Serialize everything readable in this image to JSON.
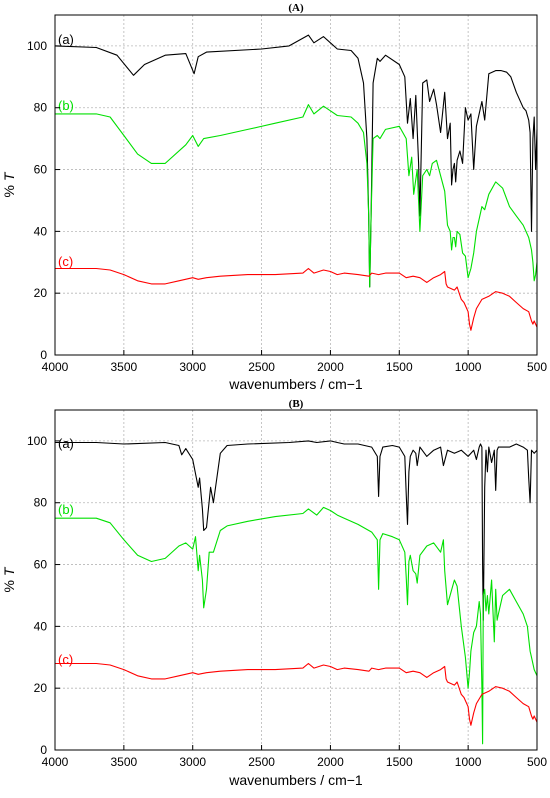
{
  "chart_data": [
    {
      "panel": "(A)",
      "type": "line",
      "title": "(A)",
      "xlabel": "wavenumbers / cm−1",
      "ylabel": "% T",
      "xlim": [
        4000,
        500
      ],
      "ylim": [
        0,
        110
      ],
      "xticks": [
        4000,
        3500,
        3000,
        2500,
        2000,
        1500,
        1000,
        500
      ],
      "yticks": [
        0,
        20,
        40,
        60,
        80,
        100
      ],
      "grid": true,
      "series": [
        {
          "name": "(a)",
          "color": "#000000",
          "x": [
            4000,
            3700,
            3550,
            3430,
            3350,
            3200,
            3050,
            2990,
            2960,
            2900,
            2500,
            2300,
            2160,
            2120,
            2050,
            2000,
            1950,
            1850,
            1800,
            1760,
            1735,
            1722,
            1715,
            1705,
            1690,
            1660,
            1640,
            1600,
            1500,
            1460,
            1440,
            1420,
            1400,
            1380,
            1360,
            1350,
            1330,
            1300,
            1280,
            1250,
            1230,
            1200,
            1170,
            1150,
            1130,
            1120,
            1110,
            1100,
            1090,
            1080,
            1060,
            1040,
            1020,
            1000,
            980,
            960,
            940,
            900,
            880,
            850,
            800,
            760,
            720,
            690,
            650,
            600,
            580,
            560,
            550,
            540,
            530,
            520,
            510,
            500
          ],
          "y": [
            100,
            99.5,
            97,
            90.5,
            94,
            97,
            97.5,
            91,
            96.5,
            98,
            99,
            100,
            103.5,
            101,
            103,
            101,
            99,
            98.5,
            96,
            88,
            70,
            45,
            22,
            45,
            88,
            96,
            95,
            97,
            94,
            90,
            75,
            83,
            70,
            84,
            62,
            45,
            88,
            89,
            82,
            86,
            81,
            72,
            85,
            70,
            75,
            55,
            60,
            62,
            56,
            63,
            66,
            62,
            80,
            76,
            78,
            60,
            74,
            82,
            76,
            91,
            92,
            92,
            91.5,
            90,
            85,
            80,
            79,
            76,
            72,
            40,
            70,
            77,
            60,
            73
          ]
        },
        {
          "name": "(b)",
          "color": "#00e000",
          "x": [
            4000,
            3800,
            3700,
            3600,
            3500,
            3400,
            3300,
            3200,
            3050,
            3000,
            2960,
            2920,
            2800,
            2600,
            2400,
            2200,
            2160,
            2120,
            2050,
            2000,
            1950,
            1850,
            1800,
            1760,
            1735,
            1722,
            1715,
            1705,
            1690,
            1660,
            1640,
            1600,
            1500,
            1450,
            1430,
            1410,
            1395,
            1370,
            1350,
            1330,
            1300,
            1280,
            1260,
            1230,
            1200,
            1170,
            1150,
            1130,
            1120,
            1110,
            1100,
            1090,
            1080,
            1060,
            1040,
            1020,
            1000,
            980,
            960,
            940,
            900,
            880,
            850,
            800,
            750,
            700,
            650,
            600,
            560,
            540,
            530,
            520,
            510,
            500
          ],
          "y": [
            78,
            78,
            78,
            77,
            71,
            65,
            62,
            62,
            68,
            71,
            67.5,
            70,
            71,
            73,
            75,
            77,
            81,
            78,
            80.5,
            79,
            77.5,
            77,
            75,
            72,
            62,
            45,
            22,
            45,
            70,
            71,
            70,
            73,
            74,
            70,
            58,
            64,
            52,
            60,
            40,
            58,
            60,
            58,
            62,
            63,
            58,
            53,
            42,
            40,
            34,
            38,
            38,
            35,
            40,
            39,
            33,
            32,
            25,
            28,
            33,
            40,
            48,
            47,
            52,
            56,
            54,
            48,
            45,
            42,
            38,
            34,
            30,
            24,
            26,
            30
          ]
        },
        {
          "name": "(c)",
          "color": "#ff0000",
          "x": [
            4000,
            3800,
            3700,
            3600,
            3500,
            3400,
            3300,
            3200,
            3100,
            3000,
            2960,
            2900,
            2800,
            2600,
            2400,
            2200,
            2160,
            2120,
            2050,
            2000,
            1950,
            1900,
            1800,
            1720,
            1700,
            1650,
            1600,
            1500,
            1450,
            1400,
            1350,
            1300,
            1250,
            1200,
            1170,
            1160,
            1150,
            1100,
            1080,
            1050,
            1030,
            1000,
            990,
            980,
            960,
            940,
            900,
            850,
            800,
            750,
            700,
            650,
            600,
            560,
            540,
            530,
            520,
            500
          ],
          "y": [
            28,
            28,
            28,
            27.5,
            26,
            24,
            23,
            23,
            24,
            25,
            24.5,
            25,
            25.5,
            26,
            26,
            26.5,
            28,
            26.5,
            27.5,
            27,
            26,
            26.5,
            26,
            25.5,
            26.5,
            26,
            26.5,
            26.5,
            25,
            25.5,
            25,
            23.5,
            25,
            26,
            27,
            23,
            22,
            21,
            22,
            18,
            17,
            14,
            10,
            8,
            12,
            15,
            18,
            19,
            20.5,
            20,
            19,
            17,
            15,
            14,
            11,
            10,
            11,
            9
          ]
        }
      ]
    },
    {
      "panel": "(B)",
      "type": "line",
      "title": "(B)",
      "xlabel": "wavenumbers / cm−1",
      "ylabel": "% T",
      "xlim": [
        4000,
        500
      ],
      "ylim": [
        0,
        110
      ],
      "xticks": [
        4000,
        3500,
        3000,
        2500,
        2000,
        1500,
        1000,
        500
      ],
      "yticks": [
        0,
        20,
        40,
        60,
        80,
        100
      ],
      "grid": true,
      "series": [
        {
          "name": "(a)",
          "color": "#000000",
          "x": [
            4000,
            3700,
            3500,
            3200,
            3100,
            3080,
            3050,
            3000,
            2960,
            2950,
            2930,
            2920,
            2900,
            2870,
            2850,
            2800,
            2750,
            2600,
            2300,
            2160,
            2100,
            2000,
            1950,
            1900,
            1800,
            1700,
            1660,
            1650,
            1640,
            1620,
            1550,
            1500,
            1460,
            1450,
            1440,
            1430,
            1420,
            1400,
            1380,
            1370,
            1350,
            1300,
            1250,
            1200,
            1180,
            1150,
            1100,
            1050,
            1000,
            960,
            940,
            920,
            910,
            900,
            895,
            890,
            880,
            870,
            860,
            850,
            830,
            810,
            800,
            790,
            780,
            750,
            700,
            650,
            600,
            570,
            560,
            550,
            540,
            520,
            500
          ],
          "y": [
            99.5,
            99.5,
            99,
            99.5,
            98.5,
            95.5,
            97.5,
            94,
            85,
            88,
            78,
            71,
            72,
            85,
            80,
            96,
            98.5,
            99,
            99.5,
            100,
            99.5,
            100,
            99.5,
            99,
            99,
            98,
            95,
            82,
            95,
            98,
            98.5,
            98,
            95,
            83,
            73,
            90,
            95,
            97,
            96,
            92,
            98,
            95,
            97,
            98,
            92,
            97,
            96,
            97,
            95,
            97,
            94,
            98,
            99,
            98,
            60,
            42,
            85,
            97,
            90,
            98,
            93,
            97,
            84,
            97,
            98,
            98,
            98,
            99,
            98,
            97,
            88,
            80,
            97,
            96,
            97
          ]
        },
        {
          "name": "(b)",
          "color": "#00e000",
          "x": [
            4000,
            3800,
            3700,
            3600,
            3500,
            3400,
            3300,
            3200,
            3100,
            3050,
            3000,
            2980,
            2960,
            2950,
            2930,
            2920,
            2900,
            2880,
            2850,
            2800,
            2750,
            2600,
            2400,
            2200,
            2160,
            2100,
            2050,
            2000,
            1950,
            1900,
            1800,
            1700,
            1660,
            1650,
            1640,
            1620,
            1550,
            1500,
            1460,
            1450,
            1440,
            1430,
            1420,
            1400,
            1380,
            1370,
            1350,
            1300,
            1250,
            1200,
            1180,
            1170,
            1150,
            1100,
            1080,
            1050,
            1020,
            1000,
            990,
            980,
            960,
            940,
            920,
            910,
            900,
            895,
            890,
            880,
            870,
            860,
            850,
            830,
            810,
            800,
            790,
            780,
            750,
            700,
            650,
            600,
            570,
            560,
            550,
            540,
            520,
            500
          ],
          "y": [
            75,
            75,
            75,
            73.5,
            68,
            63,
            61,
            62,
            66,
            67,
            65,
            69,
            58,
            63,
            55,
            46,
            52,
            64,
            64,
            71,
            72.5,
            74,
            75.5,
            76.5,
            78,
            76,
            78.5,
            77.5,
            76,
            75,
            73,
            70.5,
            68,
            52,
            68,
            70,
            69,
            68,
            64,
            56,
            47,
            61,
            63,
            58,
            57,
            54,
            63,
            66,
            67,
            64,
            68,
            58,
            47,
            55,
            53,
            40,
            30,
            20,
            25,
            32,
            38,
            40,
            48,
            44,
            20,
            2,
            50,
            52,
            45,
            50,
            44,
            55,
            35,
            52,
            42,
            44,
            50,
            52,
            48,
            44,
            40,
            36,
            32,
            30,
            26,
            24
          ]
        },
        {
          "name": "(c)",
          "color": "#ff0000",
          "x": [
            4000,
            3800,
            3700,
            3600,
            3500,
            3400,
            3300,
            3200,
            3100,
            3000,
            2960,
            2900,
            2800,
            2600,
            2400,
            2200,
            2160,
            2120,
            2050,
            2000,
            1950,
            1900,
            1800,
            1720,
            1700,
            1650,
            1600,
            1500,
            1450,
            1400,
            1350,
            1300,
            1250,
            1200,
            1170,
            1160,
            1150,
            1100,
            1080,
            1050,
            1030,
            1000,
            990,
            980,
            960,
            940,
            900,
            850,
            800,
            750,
            700,
            650,
            600,
            560,
            540,
            530,
            520,
            500
          ],
          "y": [
            28,
            28,
            28,
            27.5,
            26,
            24,
            23,
            23,
            24,
            25,
            24.5,
            25,
            25.5,
            26,
            26,
            26.5,
            28,
            26.5,
            27.5,
            27,
            26,
            26.5,
            26,
            25.5,
            26.5,
            26,
            26.5,
            26.5,
            25,
            25.5,
            25,
            23.5,
            25,
            26,
            27,
            23,
            22,
            21,
            22,
            18,
            17,
            14,
            10,
            8,
            12,
            15,
            18,
            19,
            20.5,
            20,
            19,
            17,
            15,
            14,
            11,
            10,
            11,
            9
          ]
        }
      ]
    }
  ]
}
